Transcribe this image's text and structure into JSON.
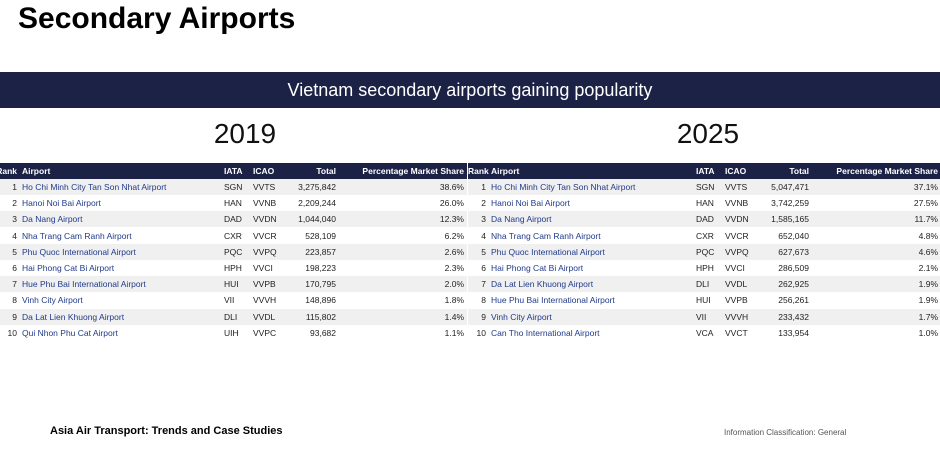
{
  "header": {
    "title": "Secondary Airports"
  },
  "banner": {
    "text": "Vietnam secondary airports gaining popularity"
  },
  "tables": [
    {
      "year": "2019",
      "columns": [
        "Rank",
        "Airport",
        "IATA",
        "ICAO",
        "Total",
        "Percentage Market Share"
      ],
      "rows": [
        [
          "1",
          "Ho Chi Minh City Tan Son Nhat Airport",
          "SGN",
          "VVTS",
          "3,275,842",
          "38.6%"
        ],
        [
          "2",
          "Hanoi Noi Bai Airport",
          "HAN",
          "VVNB",
          "2,209,244",
          "26.0%"
        ],
        [
          "3",
          "Da Nang Airport",
          "DAD",
          "VVDN",
          "1,044,040",
          "12.3%"
        ],
        [
          "4",
          "Nha Trang Cam Ranh Airport",
          "CXR",
          "VVCR",
          "528,109",
          "6.2%"
        ],
        [
          "5",
          "Phu Quoc International Airport",
          "PQC",
          "VVPQ",
          "223,857",
          "2.6%"
        ],
        [
          "6",
          "Hai Phong Cat Bi Airport",
          "HPH",
          "VVCI",
          "198,223",
          "2.3%"
        ],
        [
          "7",
          "Hue Phu Bai International Airport",
          "HUI",
          "VVPB",
          "170,795",
          "2.0%"
        ],
        [
          "8",
          "Vinh City Airport",
          "VII",
          "VVVH",
          "148,896",
          "1.8%"
        ],
        [
          "9",
          "Da Lat Lien Khuong Airport",
          "DLI",
          "VVDL",
          "115,802",
          "1.4%"
        ],
        [
          "10",
          "Qui Nhon Phu Cat Airport",
          "UIH",
          "VVPC",
          "93,682",
          "1.1%"
        ]
      ]
    },
    {
      "year": "2025",
      "columns": [
        "Rank",
        "Airport",
        "IATA",
        "ICAO",
        "Total",
        "Percentage Market Share"
      ],
      "rows": [
        [
          "1",
          "Ho Chi Minh City Tan Son Nhat Airport",
          "SGN",
          "VVTS",
          "5,047,471",
          "37.1%"
        ],
        [
          "2",
          "Hanoi Noi Bai Airport",
          "HAN",
          "VVNB",
          "3,742,259",
          "27.5%"
        ],
        [
          "3",
          "Da Nang Airport",
          "DAD",
          "VVDN",
          "1,585,165",
          "11.7%"
        ],
        [
          "4",
          "Nha Trang Cam Ranh Airport",
          "CXR",
          "VVCR",
          "652,040",
          "4.8%"
        ],
        [
          "5",
          "Phu Quoc International Airport",
          "PQC",
          "VVPQ",
          "627,673",
          "4.6%"
        ],
        [
          "6",
          "Hai Phong Cat Bi Airport",
          "HPH",
          "VVCI",
          "286,509",
          "2.1%"
        ],
        [
          "7",
          "Da Lat Lien Khuong Airport",
          "DLI",
          "VVDL",
          "262,925",
          "1.9%"
        ],
        [
          "8",
          "Hue Phu Bai International Airport",
          "HUI",
          "VVPB",
          "256,261",
          "1.9%"
        ],
        [
          "9",
          "Vinh City Airport",
          "VII",
          "VVVH",
          "233,432",
          "1.7%"
        ],
        [
          "10",
          "Can Tho International Airport",
          "VCA",
          "VVCT",
          "133,954",
          "1.0%"
        ]
      ]
    }
  ],
  "footer": {
    "left": "Asia Air Transport: Trends and Case Studies",
    "right": "Information Classification: General"
  }
}
